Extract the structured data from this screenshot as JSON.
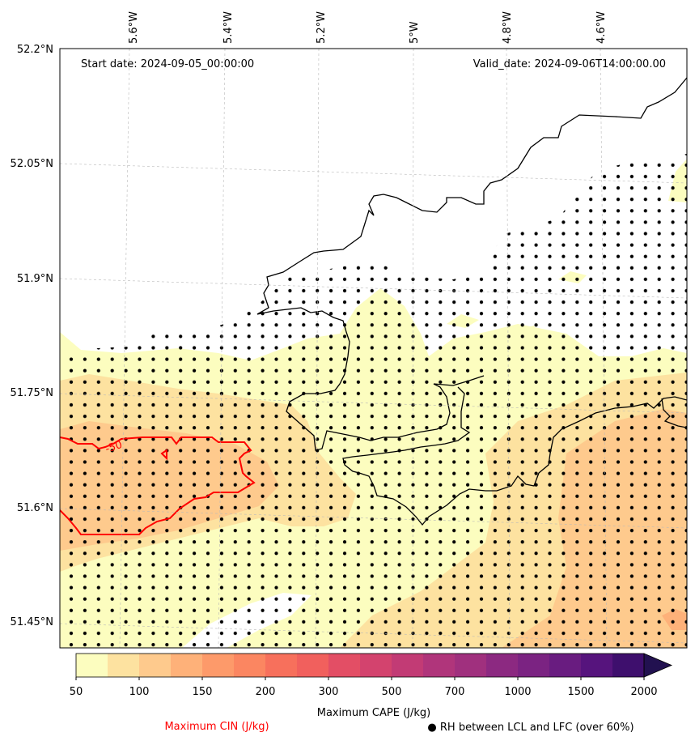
{
  "map": {
    "start_label": "Start date: 2024-09-05_00:00:00",
    "valid_label": "Valid_date: 2024-09-06T14:00:00.00",
    "lon_labels": [
      "5.6°W",
      "5.4°W",
      "5.2°W",
      "5°W",
      "4.8°W",
      "4.6°W"
    ],
    "lat_labels": [
      "52.2°N",
      "52.05°N",
      "51.9°N",
      "51.75°N",
      "51.6°N",
      "51.45°N"
    ],
    "cin_contour_label": "-50"
  },
  "colorbar": {
    "title": "Maximum CAPE (J/kg)",
    "tick_labels": [
      "50",
      "100",
      "150",
      "200",
      "300",
      "500",
      "700",
      "1000",
      "1500",
      "2000"
    ],
    "colors": [
      "#fcfdbf",
      "#fde2a0",
      "#feca8d",
      "#feb179",
      "#fd9a6a",
      "#fb8661",
      "#f7705c",
      "#f1605d",
      "#e34e65",
      "#d3436e",
      "#c23b75",
      "#b0357b",
      "#a0307e",
      "#8c2981",
      "#7b2382",
      "#691c80",
      "#56147d",
      "#3e0f6d",
      "#221150"
    ]
  },
  "legend": {
    "cin_label": "Maximum CIN (J/kg)",
    "rh_label": "● RH between LCL and LFC (over 60%)",
    "cin_color": "#ff0000"
  }
}
